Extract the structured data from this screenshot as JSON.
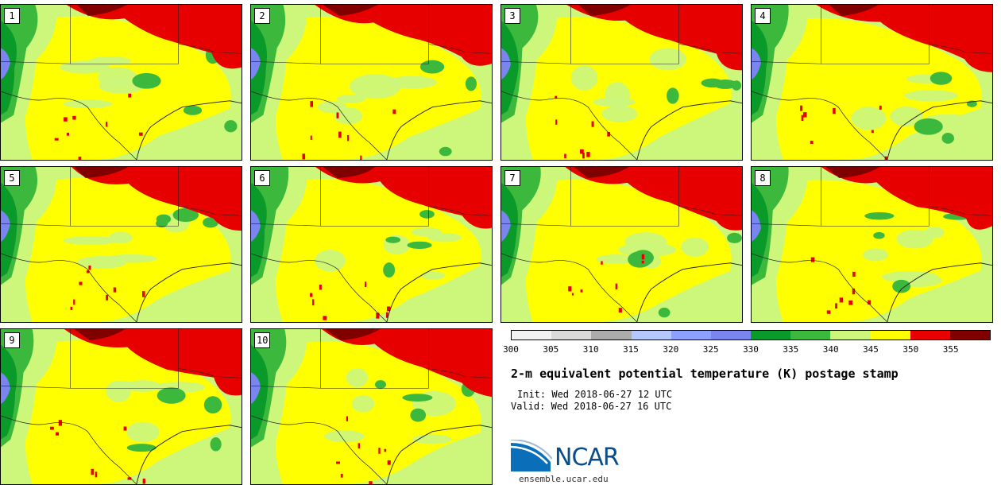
{
  "panels": [
    {
      "label": "1",
      "seed": 11
    },
    {
      "label": "2",
      "seed": 23
    },
    {
      "label": "3",
      "seed": 37
    },
    {
      "label": "4",
      "seed": 41
    },
    {
      "label": "5",
      "seed": 53
    },
    {
      "label": "6",
      "seed": 67
    },
    {
      "label": "7",
      "seed": 71
    },
    {
      "label": "8",
      "seed": 83
    },
    {
      "label": "9",
      "seed": 97
    },
    {
      "label": "10",
      "seed": 101
    }
  ],
  "colors": {
    "dark_green": "#0a9a2a",
    "green": "#3cb83c",
    "light_green": "#ccf77a",
    "yellow": "#ffff00",
    "red": "#e60000",
    "dark_red": "#800000",
    "blue": "#7b85f0"
  },
  "colorbar": {
    "colors": [
      "#f2f2f2",
      "#dadada",
      "#acacac",
      "#b4c8ff",
      "#8ca0ff",
      "#7b85f0",
      "#0a9a2a",
      "#3cb83c",
      "#ccf77a",
      "#ffff00",
      "#e60000",
      "#800000"
    ],
    "tick_labels": [
      "300",
      "305",
      "310",
      "315",
      "320",
      "325",
      "330",
      "335",
      "340",
      "345",
      "350",
      "355"
    ]
  },
  "title": "2-m equivalent potential temperature (K) postage stamp",
  "init": "Init: Wed 2018-06-27 12 UTC",
  "valid": "Valid: Wed 2018-06-27 16 UTC",
  "logo_text": "NCAR",
  "site": "ensemble.ucar.edu"
}
